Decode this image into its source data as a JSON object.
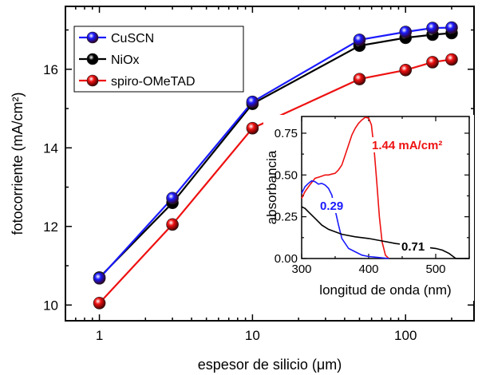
{
  "chart_data": [
    {
      "type": "line",
      "xscale": "log",
      "xlabel": "espesor de silicio (μm)",
      "ylabel": "fotocorriente (mA/cm²)",
      "xlim": [
        0.6,
        280
      ],
      "ylim": [
        9.6,
        17.6
      ],
      "xticks": [
        1,
        10,
        100
      ],
      "xtick_labels": [
        "1",
        "10",
        "100"
      ],
      "yticks": [
        10,
        12,
        14,
        16
      ],
      "ytick_labels": [
        "10",
        "12",
        "14",
        "16"
      ],
      "x": [
        1,
        3,
        10,
        50,
        100,
        150,
        200
      ],
      "series": [
        {
          "name": "CuSCN",
          "color": "#1a1aff",
          "values": [
            10.68,
            12.72,
            15.17,
            16.75,
            16.95,
            17.05,
            17.06
          ]
        },
        {
          "name": "NiOx",
          "color": "#000000",
          "values": [
            10.7,
            12.6,
            15.12,
            16.6,
            16.8,
            16.88,
            16.92
          ]
        },
        {
          "name": "spiro-OMeTAD",
          "color": "#ee1111",
          "values": [
            10.05,
            12.05,
            14.5,
            15.75,
            15.98,
            16.18,
            16.25
          ]
        }
      ],
      "legend": {
        "position": "top-left"
      }
    },
    {
      "type": "line",
      "xlabel": "longitud de onda (nm)",
      "ylabel": "absorbancia",
      "xlim": [
        300,
        550
      ],
      "ylim": [
        0,
        0.85
      ],
      "xticks": [
        300,
        400,
        500
      ],
      "xtick_labels": [
        "300",
        "400",
        "500"
      ],
      "yticks": [
        0,
        0.25,
        0.5,
        0.75
      ],
      "ytick_labels": [
        "0.00",
        "0.25",
        "0.50",
        "0.75"
      ],
      "series": [
        {
          "color": "#ee1111",
          "annotation": "1.44 mA/cm²",
          "x": [
            300,
            305,
            312,
            320,
            328,
            335,
            340,
            345,
            350,
            355,
            360,
            365,
            370,
            375,
            380,
            385,
            390,
            395,
            400,
            404,
            408,
            412,
            416,
            420,
            425,
            430
          ],
          "y": [
            0.36,
            0.4,
            0.44,
            0.48,
            0.49,
            0.5,
            0.5,
            0.505,
            0.51,
            0.53,
            0.56,
            0.62,
            0.68,
            0.74,
            0.78,
            0.81,
            0.83,
            0.845,
            0.84,
            0.8,
            0.66,
            0.46,
            0.25,
            0.1,
            0.02,
            0.0
          ]
        },
        {
          "color": "#1a1aff",
          "annotation": "0.29",
          "x": [
            300,
            305,
            310,
            315,
            320,
            325,
            330,
            335,
            340,
            345,
            350,
            355,
            360,
            370,
            380,
            390,
            400,
            410,
            420,
            430
          ],
          "y": [
            0.39,
            0.43,
            0.45,
            0.465,
            0.46,
            0.445,
            0.45,
            0.44,
            0.42,
            0.38,
            0.29,
            0.2,
            0.12,
            0.06,
            0.04,
            0.02,
            0.012,
            0.008,
            0.004,
            0.0
          ]
        },
        {
          "color": "#000000",
          "annotation": "0.71",
          "x": [
            300,
            305,
            310,
            320,
            330,
            340,
            350,
            360,
            380,
            400,
            420,
            440,
            460,
            480,
            500,
            510,
            520,
            530,
            540,
            550
          ],
          "y": [
            0.31,
            0.3,
            0.28,
            0.24,
            0.2,
            0.175,
            0.16,
            0.145,
            0.13,
            0.12,
            0.105,
            0.09,
            0.08,
            0.07,
            0.06,
            0.05,
            0.03,
            0.0,
            0.0,
            0.0
          ]
        }
      ]
    }
  ]
}
